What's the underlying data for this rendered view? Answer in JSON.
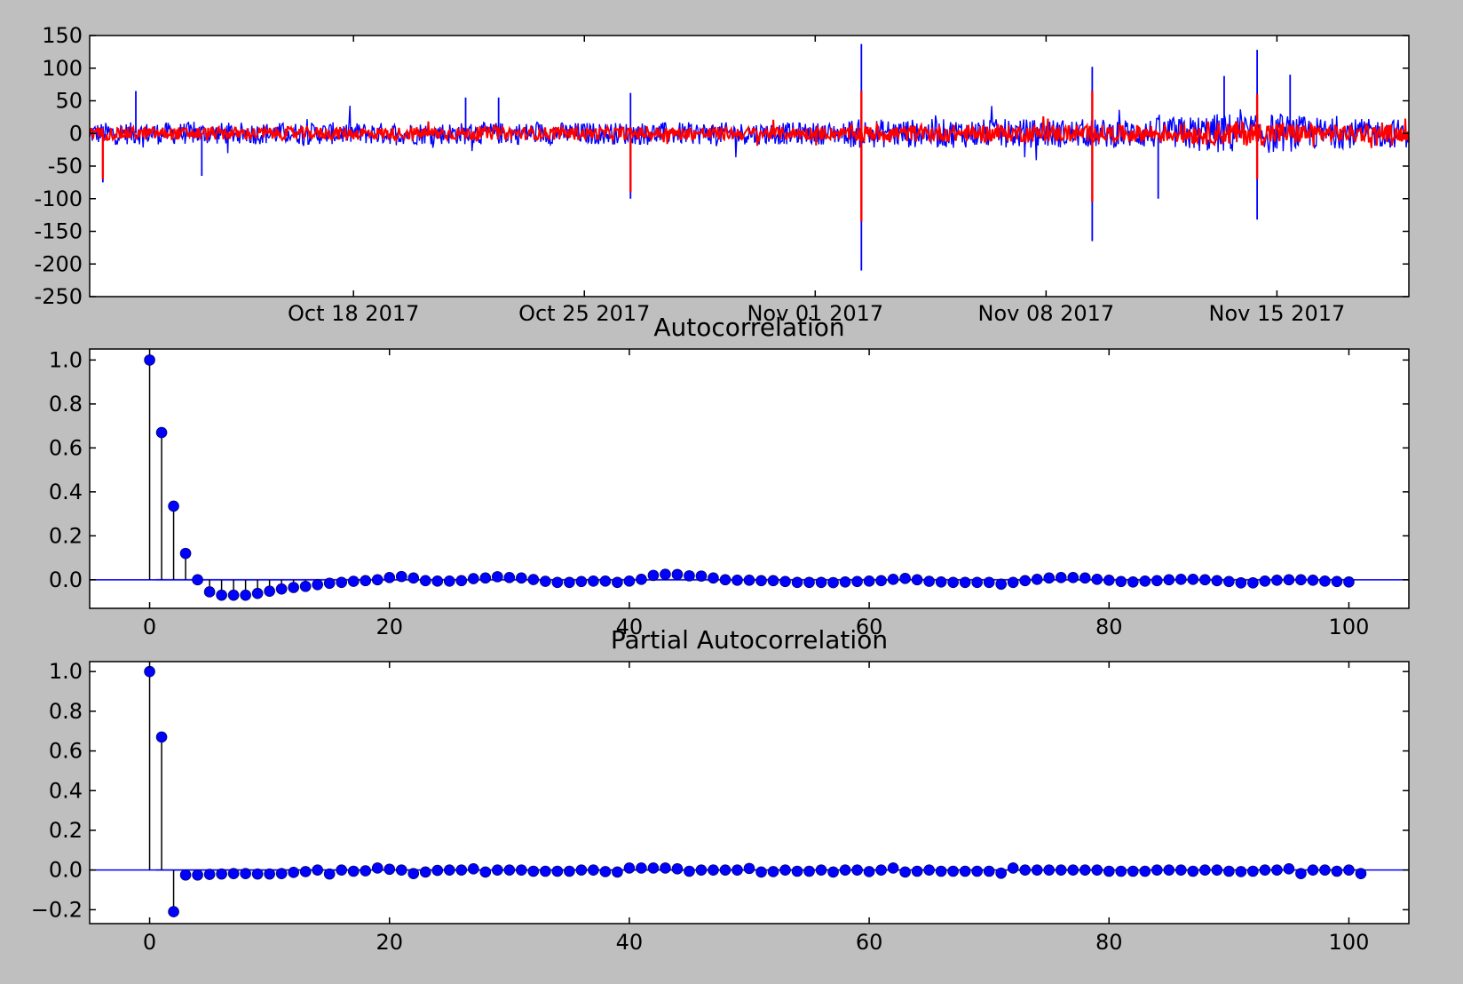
{
  "figure": {
    "background": "#bfbfbf"
  },
  "chart_data": [
    {
      "type": "line",
      "title": "",
      "xlabel": "",
      "ylabel": "",
      "x_ticks": [
        "Oct 18 2017",
        "Oct 25 2017",
        "Nov 01 2017",
        "Nov 08 2017",
        "Nov 15 2017"
      ],
      "x_range": [
        "Oct 10 2017",
        "Nov 19 2017"
      ],
      "y_ticks": [
        150,
        100,
        50,
        0,
        -50,
        -100,
        -150,
        -200,
        -250
      ],
      "ylim": [
        -250,
        150
      ],
      "grid": false,
      "series": [
        {
          "color": "#0000ff",
          "noise_band": 17,
          "spikes": [
            {
              "date": "Oct 10 2017",
              "value": -75
            },
            {
              "date": "Oct 11 2017",
              "value": 65
            },
            {
              "date": "Oct 13 2017",
              "value": -65
            },
            {
              "date": "Oct 21 2017",
              "value": 55
            },
            {
              "date": "Oct 22 2017",
              "value": 55
            },
            {
              "date": "Oct 26 2017",
              "value": 62
            },
            {
              "date": "Oct 26 2017",
              "value": -100
            },
            {
              "date": "Nov 02 2017",
              "value": 137
            },
            {
              "date": "Nov 02 2017",
              "value": -210
            },
            {
              "date": "Nov 09 2017",
              "value": 102
            },
            {
              "date": "Nov 09 2017",
              "value": -165
            },
            {
              "date": "Nov 11 2017",
              "value": -100
            },
            {
              "date": "Nov 13 2017",
              "value": 88
            },
            {
              "date": "Nov 14 2017",
              "value": 128
            },
            {
              "date": "Nov 14 2017",
              "value": -132
            },
            {
              "date": "Nov 15 2017",
              "value": 90
            }
          ]
        },
        {
          "color": "#ff0000",
          "noise_band": 10,
          "spikes": [
            {
              "date": "Oct 10 2017",
              "value": -70
            },
            {
              "date": "Oct 26 2017",
              "value": -90
            },
            {
              "date": "Nov 02 2017",
              "value": 65
            },
            {
              "date": "Nov 02 2017",
              "value": -135
            },
            {
              "date": "Nov 09 2017",
              "value": 65
            },
            {
              "date": "Nov 09 2017",
              "value": -105
            },
            {
              "date": "Nov 14 2017",
              "value": 60
            },
            {
              "date": "Nov 14 2017",
              "value": -70
            }
          ]
        }
      ]
    },
    {
      "type": "stem",
      "title": "Autocorrelation",
      "xlabel": "",
      "ylabel": "",
      "xlim": [
        -5,
        105
      ],
      "ylim": [
        -0.13,
        1.05
      ],
      "x_ticks": [
        0,
        20,
        40,
        60,
        80,
        100
      ],
      "y_ticks": [
        "1.0",
        "0.8",
        "0.6",
        "0.4",
        "0.2",
        "0.0"
      ],
      "y_tick_values": [
        1.0,
        0.8,
        0.6,
        0.4,
        0.2,
        0.0
      ],
      "marker_color": "#0000ff",
      "stem_color": "#000000",
      "zero_line_color": "#0000ff",
      "confidence_band": 0.006,
      "values": [
        1.0,
        0.67,
        0.335,
        0.12,
        0.0,
        -0.055,
        -0.07,
        -0.07,
        -0.07,
        -0.062,
        -0.052,
        -0.042,
        -0.035,
        -0.03,
        -0.022,
        -0.016,
        -0.012,
        -0.007,
        -0.004,
        0.0,
        0.01,
        0.015,
        0.008,
        -0.004,
        -0.006,
        -0.006,
        -0.004,
        0.005,
        0.008,
        0.014,
        0.01,
        0.008,
        0.001,
        -0.007,
        -0.012,
        -0.012,
        -0.008,
        -0.006,
        -0.006,
        -0.012,
        -0.006,
        0.002,
        0.02,
        0.025,
        0.024,
        0.018,
        0.017,
        0.008,
        0.0,
        -0.002,
        -0.002,
        -0.004,
        -0.004,
        -0.008,
        -0.012,
        -0.012,
        -0.012,
        -0.013,
        -0.01,
        -0.008,
        -0.006,
        -0.004,
        0.002,
        0.006,
        0.0,
        -0.007,
        -0.01,
        -0.012,
        -0.012,
        -0.012,
        -0.012,
        -0.02,
        -0.012,
        -0.004,
        0.002,
        0.008,
        0.01,
        0.01,
        0.008,
        0.002,
        -0.002,
        -0.008,
        -0.01,
        -0.006,
        -0.004,
        0.0,
        0.002,
        0.002,
        0.0,
        -0.004,
        -0.008,
        -0.014,
        -0.014,
        -0.006,
        -0.002,
        0.0,
        0.0,
        -0.002,
        -0.006,
        -0.008,
        -0.01
      ]
    },
    {
      "type": "stem",
      "title": "Partial Autocorrelation",
      "xlabel": "",
      "ylabel": "",
      "xlim": [
        -5,
        105
      ],
      "ylim": [
        -0.27,
        1.05
      ],
      "x_ticks": [
        0,
        20,
        40,
        60,
        80,
        100
      ],
      "y_ticks": [
        "1.0",
        "0.8",
        "0.6",
        "0.4",
        "0.2",
        "0.0",
        "−0.2"
      ],
      "y_tick_values": [
        1.0,
        0.8,
        0.6,
        0.4,
        0.2,
        0.0,
        -0.2
      ],
      "marker_color": "#0000ff",
      "stem_color": "#000000",
      "zero_line_color": "#0000ff",
      "confidence_band": 0.006,
      "values": [
        1.0,
        0.67,
        -0.21,
        -0.025,
        -0.025,
        -0.022,
        -0.02,
        -0.018,
        -0.018,
        -0.02,
        -0.02,
        -0.018,
        -0.012,
        -0.008,
        0.0,
        -0.02,
        0.0,
        -0.006,
        -0.004,
        0.01,
        0.004,
        0.0,
        -0.018,
        -0.01,
        -0.002,
        0.0,
        0.0,
        0.006,
        -0.01,
        0.0,
        0.0,
        0.0,
        -0.006,
        -0.006,
        -0.006,
        -0.006,
        0.0,
        0.0,
        -0.008,
        -0.01,
        0.01,
        0.01,
        0.01,
        0.01,
        0.006,
        -0.006,
        0.0,
        0.0,
        0.0,
        0.0,
        0.008,
        -0.01,
        -0.008,
        0.0,
        -0.006,
        -0.006,
        0.0,
        -0.01,
        0.0,
        0.0,
        -0.008,
        0.0,
        0.01,
        -0.01,
        -0.006,
        0.0,
        -0.006,
        -0.006,
        -0.006,
        -0.006,
        -0.006,
        -0.016,
        0.01,
        0.0,
        0.0,
        0.0,
        0.0,
        0.0,
        0.0,
        0.0,
        -0.006,
        -0.006,
        -0.006,
        -0.006,
        0.0,
        0.0,
        0.0,
        -0.006,
        0.0,
        0.0,
        -0.006,
        -0.008,
        -0.006,
        0.0,
        0.0,
        0.006,
        -0.018,
        0.0,
        0.0,
        -0.006,
        0.0,
        -0.018
      ]
    }
  ]
}
